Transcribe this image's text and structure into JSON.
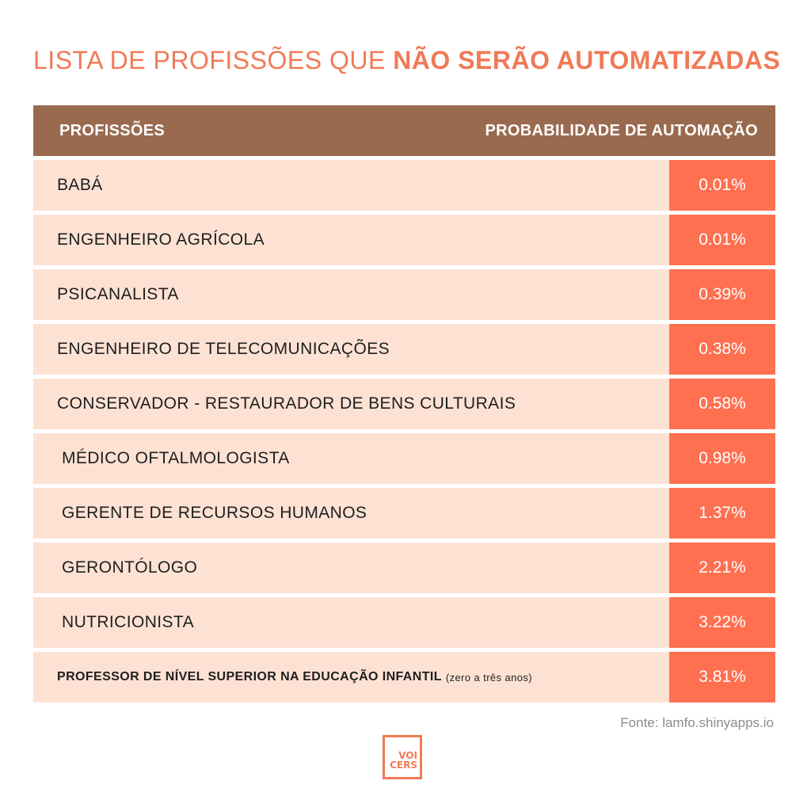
{
  "title": {
    "light": "LISTA DE PROFISSÕES QUE ",
    "bold": "NÃO SERÃO AUTOMATIZADAS"
  },
  "table": {
    "header": {
      "col1": "PROFISSÕES",
      "col2": "PROBABILIDADE DE AUTOMAÇÃO"
    },
    "rows": [
      {
        "name": "BABÁ",
        "value": "0.01%"
      },
      {
        "name": "ENGENHEIRO AGRÍCOLA",
        "value": "0.01%"
      },
      {
        "name": "PSICANALISTA",
        "value": "0.39%"
      },
      {
        "name": "ENGENHEIRO DE TELECOMUNICAÇÕES",
        "value": "0.38%"
      },
      {
        "name": "CONSERVADOR - RESTAURADOR DE BENS CULTURAIS",
        "value": "0.58%"
      },
      {
        "name": "MÉDICO OFTALMOLOGISTA",
        "value": "0.98%"
      },
      {
        "name": "GERENTE DE RECURSOS HUMANOS",
        "value": "1.37%"
      },
      {
        "name": "GERONTÓLOGO",
        "value": "2.21%"
      },
      {
        "name": "NUTRICIONISTA",
        "value": "3.22%"
      },
      {
        "name": "PROFESSOR DE NÍVEL SUPERIOR NA EDUCAÇÃO INFANTIL",
        "note": "(zero a três anos)",
        "value": "3.81%"
      }
    ]
  },
  "source": "Fonte: lamfo.shinyapps.io",
  "logo": {
    "line1": "VOI",
    "line2": "CERS"
  },
  "colors": {
    "accent": "#f07a56",
    "header_bg": "#9a6a4f",
    "row_bg": "#fde2d4",
    "value_bg": "#ff7050"
  }
}
